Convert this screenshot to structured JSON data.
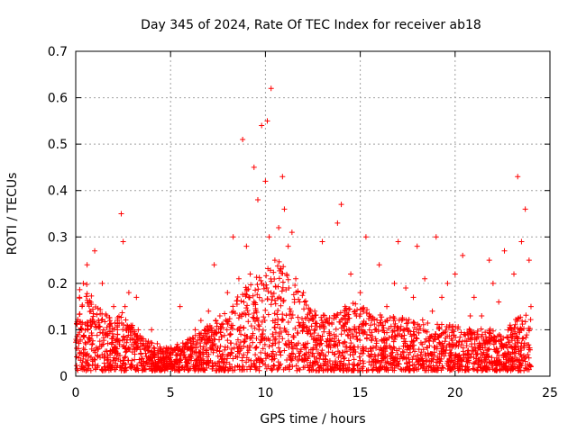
{
  "chart_data": {
    "type": "scatter",
    "title": "Day 345 of 2024, Rate Of TEC Index for receiver ab18",
    "xlabel": "GPS time / hours",
    "ylabel": "ROTI / TECUs",
    "xlim": [
      0,
      25
    ],
    "ylim": [
      0,
      0.7
    ],
    "xticks": [
      "0",
      "5",
      "10",
      "15",
      "20",
      "25"
    ],
    "xtick_values": [
      0,
      5,
      10,
      15,
      20,
      25
    ],
    "yticks": [
      "0",
      "0.1",
      "0.2",
      "0.3",
      "0.4",
      "0.5",
      "0.6",
      "0.7"
    ],
    "ytick_values": [
      0,
      0.1,
      0.2,
      0.3,
      0.4,
      0.5,
      0.6,
      0.7
    ],
    "grid": true,
    "marker": "+",
    "color": "#ff0000",
    "series": [
      {
        "name": "ROTI",
        "x": [
          0.05,
          0.2,
          0.4,
          0.6,
          0.8,
          1.0,
          1.2,
          1.4,
          1.6,
          1.8,
          2.0,
          2.2,
          2.4,
          2.5,
          2.6,
          2.8,
          3.0,
          3.2,
          3.5,
          3.8,
          4.0,
          4.3,
          4.6,
          5.0,
          5.3,
          5.5,
          5.8,
          6.0,
          6.3,
          6.6,
          7.0,
          7.3,
          7.6,
          8.0,
          8.3,
          8.6,
          8.8,
          9.0,
          9.2,
          9.4,
          9.6,
          9.8,
          10.0,
          10.1,
          10.2,
          10.3,
          10.5,
          10.7,
          10.9,
          11.0,
          11.2,
          11.4,
          11.6,
          11.8,
          12.0,
          12.3,
          12.6,
          13.0,
          13.4,
          13.8,
          14.0,
          14.2,
          14.5,
          14.8,
          15.0,
          15.3,
          15.6,
          16.0,
          16.4,
          16.8,
          17.0,
          17.4,
          17.8,
          18.0,
          18.4,
          18.8,
          19.0,
          19.3,
          19.6,
          20.0,
          20.4,
          20.8,
          21.0,
          21.4,
          21.8,
          22.0,
          22.3,
          22.6,
          22.9,
          23.1,
          23.3,
          23.5,
          23.7,
          23.9,
          24.0
        ],
        "y": [
          0.06,
          0.17,
          0.2,
          0.24,
          0.14,
          0.27,
          0.12,
          0.2,
          0.09,
          0.12,
          0.15,
          0.1,
          0.35,
          0.29,
          0.15,
          0.18,
          0.1,
          0.17,
          0.08,
          0.06,
          0.1,
          0.07,
          0.05,
          0.04,
          0.06,
          0.15,
          0.07,
          0.08,
          0.1,
          0.12,
          0.14,
          0.24,
          0.13,
          0.18,
          0.3,
          0.21,
          0.51,
          0.28,
          0.22,
          0.45,
          0.38,
          0.54,
          0.42,
          0.55,
          0.3,
          0.62,
          0.25,
          0.32,
          0.43,
          0.36,
          0.28,
          0.31,
          0.21,
          0.16,
          0.18,
          0.12,
          0.14,
          0.29,
          0.08,
          0.33,
          0.37,
          0.15,
          0.22,
          0.13,
          0.18,
          0.3,
          0.12,
          0.24,
          0.15,
          0.2,
          0.29,
          0.19,
          0.17,
          0.28,
          0.21,
          0.14,
          0.3,
          0.17,
          0.2,
          0.22,
          0.26,
          0.13,
          0.17,
          0.13,
          0.25,
          0.2,
          0.16,
          0.27,
          0.11,
          0.22,
          0.43,
          0.29,
          0.36,
          0.25,
          0.15
        ]
      }
    ],
    "envelope": {
      "x": [
        0,
        0.5,
        1,
        1.5,
        2,
        2.5,
        3,
        3.5,
        4,
        4.5,
        5,
        5.5,
        6,
        6.5,
        7,
        7.5,
        8,
        8.5,
        9,
        9.5,
        10,
        10.5,
        11,
        11.5,
        12,
        12.5,
        13,
        13.5,
        14,
        14.5,
        15,
        15.5,
        16,
        16.5,
        17,
        17.5,
        18,
        18.5,
        19,
        19.5,
        20,
        20.5,
        21,
        21.5,
        22,
        22.5,
        23,
        23.5,
        24
      ],
      "y": [
        0.18,
        0.2,
        0.14,
        0.13,
        0.11,
        0.13,
        0.1,
        0.08,
        0.06,
        0.05,
        0.05,
        0.06,
        0.07,
        0.08,
        0.1,
        0.12,
        0.13,
        0.16,
        0.19,
        0.2,
        0.22,
        0.24,
        0.23,
        0.2,
        0.16,
        0.12,
        0.12,
        0.12,
        0.13,
        0.15,
        0.14,
        0.13,
        0.12,
        0.12,
        0.12,
        0.11,
        0.11,
        0.11,
        0.1,
        0.1,
        0.1,
        0.09,
        0.09,
        0.09,
        0.09,
        0.08,
        0.1,
        0.13,
        0.12
      ]
    }
  }
}
